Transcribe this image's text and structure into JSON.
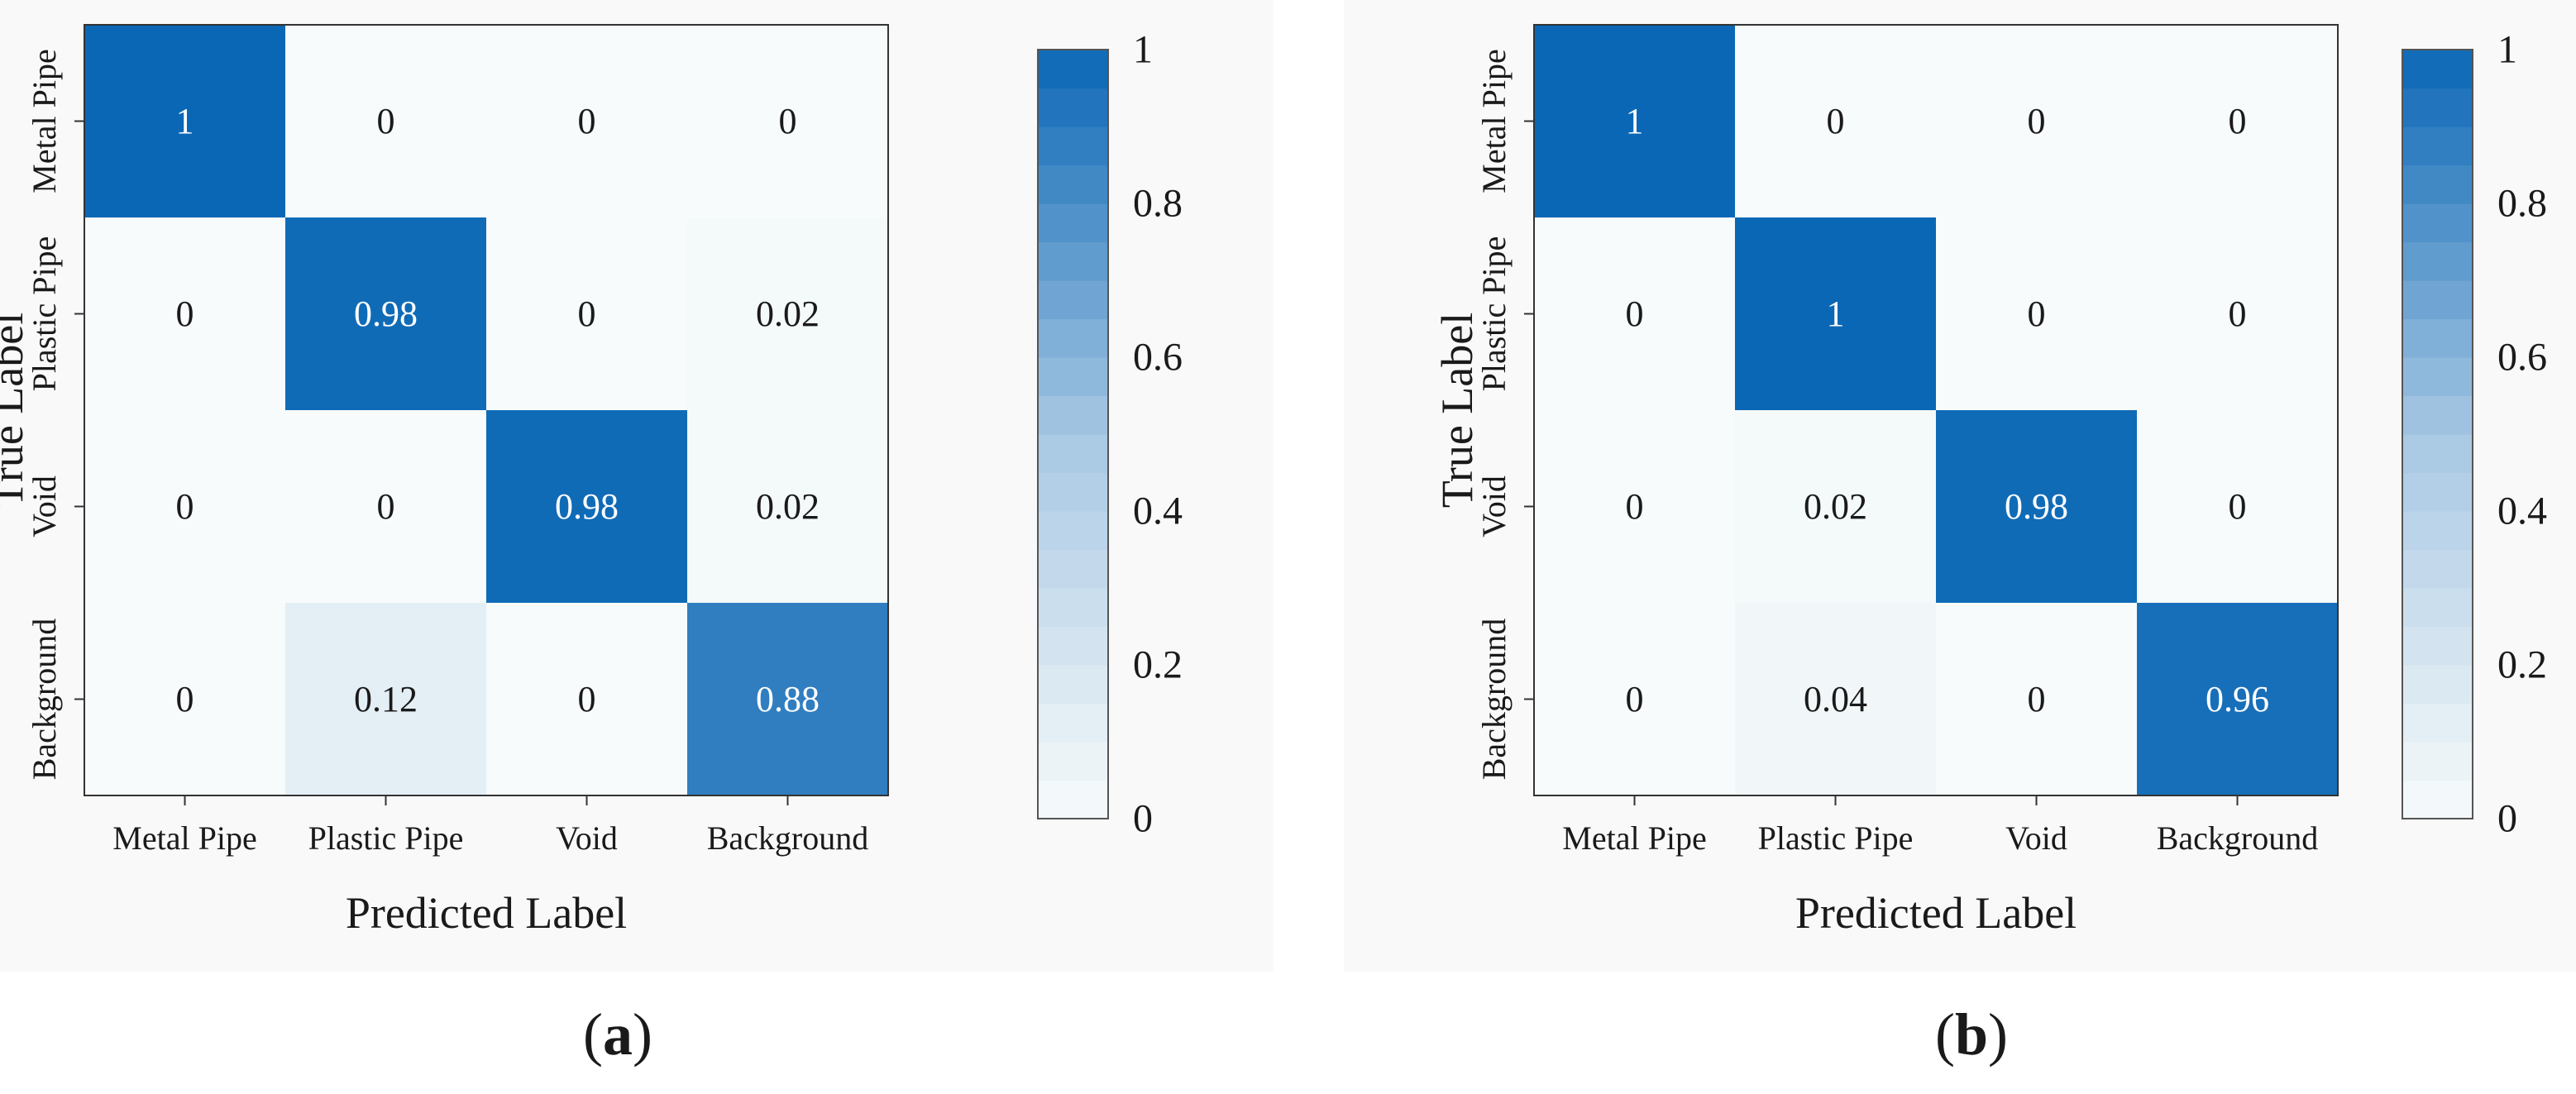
{
  "chart_data": [
    {
      "type": "heatmap",
      "panel_label": "(a)",
      "panel_letter": "a",
      "xlabel": "Predicted Label",
      "ylabel": "True Label",
      "x_categories": [
        "Metal Pipe",
        "Plastic Pipe",
        "Void",
        "Background"
      ],
      "y_categories": [
        "Metal Pipe",
        "Plastic Pipe",
        "Void",
        "Background"
      ],
      "values": [
        [
          1,
          0,
          0,
          0
        ],
        [
          0,
          0.98,
          0,
          0.02
        ],
        [
          0,
          0,
          0.98,
          0.02
        ],
        [
          0,
          0.12,
          0,
          0.88
        ]
      ],
      "cell_labels": [
        [
          "1",
          "0",
          "0",
          "0"
        ],
        [
          "0",
          "0.98",
          "0",
          "0.02"
        ],
        [
          "0",
          "0",
          "0.98",
          "0.02"
        ],
        [
          "0",
          "0.12",
          "0",
          "0.88"
        ]
      ],
      "colorbar": {
        "range": [
          0,
          1
        ],
        "ticks": [
          "0",
          "0.2",
          "0.4",
          "0.6",
          "0.8",
          "1"
        ]
      }
    },
    {
      "type": "heatmap",
      "panel_label": "(b)",
      "panel_letter": "b",
      "xlabel": "Predicted Label",
      "ylabel": "True Label",
      "x_categories": [
        "Metal Pipe",
        "Plastic Pipe",
        "Void",
        "Background"
      ],
      "y_categories": [
        "Metal Pipe",
        "Plastic Pipe",
        "Void",
        "Background"
      ],
      "values": [
        [
          1,
          0,
          0,
          0
        ],
        [
          0,
          1,
          0,
          0
        ],
        [
          0,
          0.02,
          0.98,
          0
        ],
        [
          0,
          0.04,
          0,
          0.96
        ]
      ],
      "cell_labels": [
        [
          "1",
          "0",
          "0",
          "0"
        ],
        [
          "0",
          "1",
          "0",
          "0"
        ],
        [
          "0",
          "0.02",
          "0.98",
          "0"
        ],
        [
          "0",
          "0.04",
          "0",
          "0.96"
        ]
      ],
      "colorbar": {
        "range": [
          0,
          1
        ],
        "ticks": [
          "0",
          "0.2",
          "0.4",
          "0.6",
          "0.8",
          "1"
        ]
      }
    }
  ],
  "colors": {
    "low": "#f7fbfb",
    "mid": "#a7c7e3",
    "high": "#0a67b5",
    "dark_text": "#1a1a1a",
    "light_text": "#ffffff",
    "panel_background": "#f9f9f9"
  }
}
